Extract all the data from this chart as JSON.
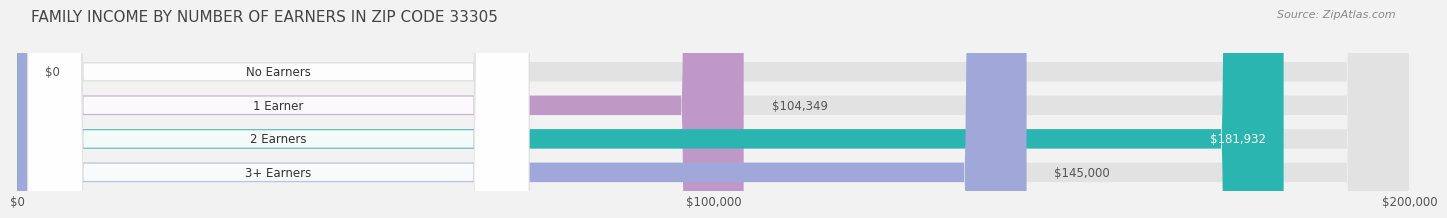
{
  "title": "FAMILY INCOME BY NUMBER OF EARNERS IN ZIP CODE 33305",
  "source": "Source: ZipAtlas.com",
  "categories": [
    "No Earners",
    "1 Earner",
    "2 Earners",
    "3+ Earners"
  ],
  "values": [
    0,
    104349,
    181932,
    145000
  ],
  "labels": [
    "$0",
    "$104,349",
    "$181,932",
    "$145,000"
  ],
  "bar_colors": [
    "#a8c4e0",
    "#c098c8",
    "#2ab5b0",
    "#9fa8d8"
  ],
  "xlim": [
    0,
    200000
  ],
  "xtick_values": [
    0,
    100000,
    200000
  ],
  "xtick_labels": [
    "$0",
    "$100,000",
    "$200,000"
  ],
  "background_color": "#f2f2f2",
  "bar_bg_color": "#e2e2e2",
  "title_fontsize": 11,
  "source_fontsize": 8,
  "label_fontsize": 8.5,
  "cat_fontsize": 8.5,
  "tick_fontsize": 8.5,
  "bar_height": 0.58,
  "inside_label_threshold": 155000
}
